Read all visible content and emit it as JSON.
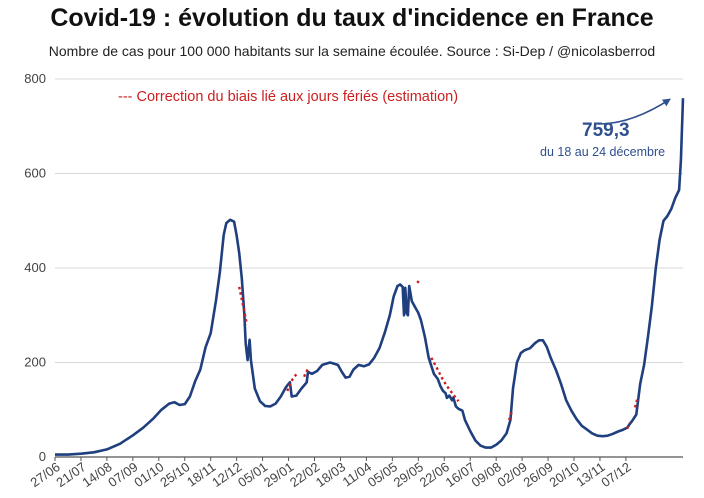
{
  "chart_data": {
    "type": "line",
    "title": "Covid-19 : évolution du taux d'incidence en France",
    "subtitle": "Nombre de cas pour 100 000 habitants sur la semaine écoulée. Source : Si-Dep  / @nicolasberrod",
    "ylim": [
      0,
      800
    ],
    "yticks": [
      0,
      200,
      400,
      600,
      800
    ],
    "xlabel": "",
    "ylabel": "",
    "categories": [
      "27/06",
      "21/07",
      "14/08",
      "07/09",
      "01/10",
      "25/10",
      "18/11",
      "12/12",
      "05/01",
      "29/01",
      "22/02",
      "18/03",
      "11/04",
      "05/05",
      "29/05",
      "22/06",
      "16/07",
      "09/08",
      "02/09",
      "26/09",
      "20/10",
      "13/11",
      "07/12"
    ],
    "series": [
      {
        "name": "Taux d'incidence",
        "color": "#1f3f7f",
        "points": [
          [
            0,
            5
          ],
          [
            0.5,
            5
          ],
          [
            1,
            7
          ],
          [
            1.5,
            10
          ],
          [
            2,
            16
          ],
          [
            2.5,
            28
          ],
          [
            3,
            46
          ],
          [
            3.4,
            62
          ],
          [
            3.8,
            82
          ],
          [
            4.1,
            100
          ],
          [
            4.4,
            113
          ],
          [
            4.6,
            116
          ],
          [
            4.8,
            110
          ],
          [
            5.0,
            112
          ],
          [
            5.2,
            128
          ],
          [
            5.4,
            160
          ],
          [
            5.6,
            185
          ],
          [
            5.8,
            232
          ],
          [
            6.0,
            262
          ],
          [
            6.2,
            330
          ],
          [
            6.35,
            390
          ],
          [
            6.5,
            470
          ],
          [
            6.6,
            495
          ],
          [
            6.75,
            502
          ],
          [
            6.9,
            498
          ],
          [
            7.0,
            468
          ],
          [
            7.1,
            432
          ],
          [
            7.2,
            378
          ],
          [
            7.3,
            300
          ],
          [
            7.35,
            240
          ],
          [
            7.42,
            205
          ],
          [
            7.5,
            248
          ],
          [
            7.55,
            205
          ],
          [
            7.7,
            145
          ],
          [
            7.9,
            118
          ],
          [
            8.1,
            108
          ],
          [
            8.3,
            107
          ],
          [
            8.5,
            113
          ],
          [
            8.7,
            128
          ],
          [
            8.9,
            148
          ],
          [
            9.05,
            158
          ],
          [
            9.12,
            128
          ],
          [
            9.3,
            130
          ],
          [
            9.5,
            145
          ],
          [
            9.7,
            158
          ],
          [
            9.75,
            180
          ],
          [
            9.9,
            176
          ],
          [
            10.1,
            182
          ],
          [
            10.3,
            195
          ],
          [
            10.6,
            200
          ],
          [
            10.9,
            195
          ],
          [
            11.05,
            180
          ],
          [
            11.2,
            168
          ],
          [
            11.35,
            170
          ],
          [
            11.5,
            185
          ],
          [
            11.7,
            195
          ],
          [
            11.9,
            192
          ],
          [
            12.1,
            196
          ],
          [
            12.3,
            210
          ],
          [
            12.5,
            230
          ],
          [
            12.7,
            262
          ],
          [
            12.9,
            300
          ],
          [
            13.05,
            340
          ],
          [
            13.2,
            362
          ],
          [
            13.3,
            365
          ],
          [
            13.4,
            360
          ],
          [
            13.45,
            300
          ],
          [
            13.5,
            358
          ],
          [
            13.55,
            305
          ],
          [
            13.6,
            300
          ],
          [
            13.65,
            362
          ],
          [
            13.75,
            330
          ],
          [
            13.9,
            315
          ],
          [
            14.0,
            305
          ],
          [
            14.1,
            290
          ],
          [
            14.25,
            255
          ],
          [
            14.4,
            210
          ],
          [
            14.6,
            176
          ],
          [
            14.75,
            165
          ],
          [
            14.85,
            150
          ],
          [
            14.95,
            140
          ],
          [
            15.05,
            135
          ],
          [
            15.1,
            125
          ],
          [
            15.2,
            130
          ],
          [
            15.3,
            120
          ],
          [
            15.35,
            126
          ],
          [
            15.45,
            107
          ],
          [
            15.55,
            102
          ],
          [
            15.7,
            98
          ],
          [
            15.8,
            78
          ],
          [
            16.0,
            55
          ],
          [
            16.2,
            35
          ],
          [
            16.4,
            24
          ],
          [
            16.6,
            20
          ],
          [
            16.8,
            20
          ],
          [
            17.0,
            26
          ],
          [
            17.2,
            35
          ],
          [
            17.4,
            50
          ],
          [
            17.55,
            78
          ],
          [
            17.65,
            145
          ],
          [
            17.8,
            200
          ],
          [
            17.95,
            220
          ],
          [
            18.1,
            226
          ],
          [
            18.3,
            230
          ],
          [
            18.5,
            241
          ],
          [
            18.65,
            247
          ],
          [
            18.8,
            247
          ],
          [
            18.95,
            233
          ],
          [
            19.1,
            210
          ],
          [
            19.3,
            185
          ],
          [
            19.5,
            155
          ],
          [
            19.7,
            120
          ],
          [
            19.9,
            98
          ],
          [
            20.1,
            80
          ],
          [
            20.3,
            66
          ],
          [
            20.5,
            58
          ],
          [
            20.7,
            50
          ],
          [
            20.9,
            45
          ],
          [
            21.1,
            44
          ],
          [
            21.3,
            45
          ],
          [
            21.5,
            49
          ],
          [
            21.7,
            54
          ],
          [
            21.9,
            58
          ],
          [
            22.05,
            62
          ],
          [
            22.15,
            70
          ],
          [
            22.25,
            77
          ],
          [
            22.4,
            90
          ],
          [
            22.55,
            155
          ],
          [
            22.7,
            195
          ],
          [
            22.85,
            255
          ],
          [
            23.0,
            320
          ],
          [
            23.15,
            400
          ],
          [
            23.3,
            460
          ],
          [
            23.45,
            500
          ],
          [
            23.6,
            510
          ],
          [
            23.75,
            525
          ],
          [
            23.9,
            548
          ],
          [
            24.05,
            565
          ],
          [
            24.12,
            628
          ],
          [
            24.2,
            759.3
          ]
        ]
      },
      {
        "name": "Correction du biais lié aux jours fériés (estimation)",
        "color": "#cc1f1f",
        "dashed": true,
        "segments": [
          [
            [
              7.1,
              360
            ],
            [
              7.25,
              320
            ],
            [
              7.4,
              280
            ]
          ],
          [
            [
              8.95,
              140
            ],
            [
              9.1,
              160
            ],
            [
              9.3,
              175
            ]
          ],
          [
            [
              9.6,
              170
            ],
            [
              9.7,
              182
            ],
            [
              9.8,
              190
            ]
          ],
          [
            [
              13.95,
              372
            ],
            [
              14.05,
              368
            ]
          ],
          [
            [
              14.5,
              210
            ],
            [
              14.7,
              190
            ],
            [
              14.9,
              168
            ],
            [
              15.1,
              150
            ],
            [
              15.35,
              132
            ],
            [
              15.55,
              118
            ]
          ],
          [
            [
              17.5,
              78
            ],
            [
              17.6,
              95
            ]
          ],
          [
            [
              22.05,
              60
            ],
            [
              22.15,
              72
            ]
          ],
          [
            [
              22.35,
              105
            ],
            [
              22.45,
              125
            ]
          ]
        ]
      }
    ],
    "legend": "--- Correction du biais lié aux jours fériés (estimation)",
    "annotation": {
      "value": "759,3",
      "subtext": "du 18 au 24 décembre",
      "target_x": 24.2,
      "target_y": 759.3
    }
  }
}
